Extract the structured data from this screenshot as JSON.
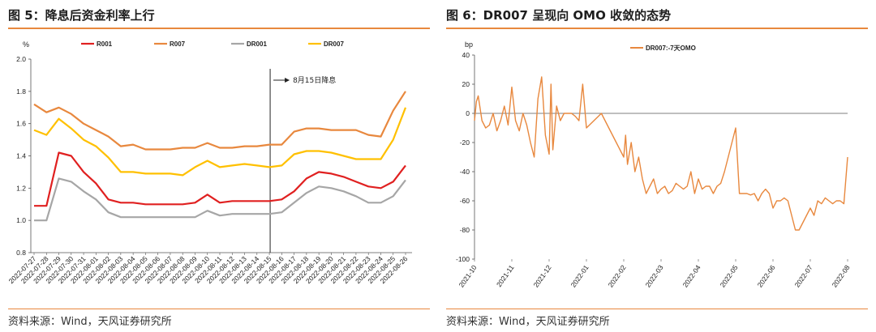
{
  "left": {
    "title": "图 5：降息后资金利率上行",
    "source": "资料来源：Wind，天风证券研究所",
    "chart_data": {
      "type": "line",
      "unit": "%",
      "ylim": [
        0.8,
        2.0
      ],
      "yticks": [
        "2.0",
        "1.8",
        "1.6",
        "1.4",
        "1.2",
        "1.0",
        "0.8"
      ],
      "grid": false,
      "legend_position": "top",
      "categories": [
        "2022-07-27",
        "2022-07-28",
        "2022-07-29",
        "2022-07-30",
        "2022-07-31",
        "2022-08-01",
        "2022-08-02",
        "2022-08-03",
        "2022-08-04",
        "2022-08-05",
        "2022-08-06",
        "2022-08-07",
        "2022-08-08",
        "2022-08-09",
        "2022-08-10",
        "2022-08-11",
        "2022-08-12",
        "2022-08-13",
        "2022-08-14",
        "2022-08-15",
        "2022-08-16",
        "2022-08-17",
        "2022-08-18",
        "2022-08-19",
        "2022-08-20",
        "2022-08-21",
        "2022-08-22",
        "2022-08-23",
        "2022-08-24",
        "2022-08-25",
        "2022-08-26"
      ],
      "series": [
        {
          "name": "R001",
          "color": "#e02020",
          "values": [
            1.09,
            1.09,
            1.42,
            1.4,
            1.3,
            1.23,
            1.13,
            1.11,
            1.11,
            1.1,
            1.1,
            1.1,
            1.1,
            1.11,
            1.16,
            1.11,
            1.12,
            1.12,
            1.12,
            1.12,
            1.13,
            1.18,
            1.26,
            1.3,
            1.29,
            1.27,
            1.24,
            1.21,
            1.2,
            1.24,
            1.34
          ]
        },
        {
          "name": "R007",
          "color": "#e8883e",
          "values": [
            1.72,
            1.67,
            1.7,
            1.66,
            1.6,
            1.56,
            1.52,
            1.46,
            1.47,
            1.44,
            1.44,
            1.44,
            1.45,
            1.45,
            1.48,
            1.45,
            1.45,
            1.46,
            1.46,
            1.47,
            1.47,
            1.55,
            1.57,
            1.57,
            1.56,
            1.56,
            1.56,
            1.53,
            1.52,
            1.68,
            1.8
          ]
        },
        {
          "name": "DR001",
          "color": "#a6a6a6",
          "values": [
            1.0,
            1.0,
            1.26,
            1.24,
            1.18,
            1.13,
            1.05,
            1.02,
            1.02,
            1.02,
            1.02,
            1.02,
            1.02,
            1.02,
            1.06,
            1.03,
            1.04,
            1.04,
            1.04,
            1.04,
            1.05,
            1.11,
            1.17,
            1.21,
            1.2,
            1.18,
            1.15,
            1.11,
            1.11,
            1.15,
            1.25
          ]
        },
        {
          "name": "DR007",
          "color": "#ffc000",
          "values": [
            1.56,
            1.53,
            1.63,
            1.57,
            1.5,
            1.46,
            1.39,
            1.3,
            1.3,
            1.29,
            1.29,
            1.29,
            1.28,
            1.33,
            1.37,
            1.33,
            1.34,
            1.35,
            1.34,
            1.33,
            1.34,
            1.41,
            1.43,
            1.43,
            1.42,
            1.4,
            1.38,
            1.38,
            1.38,
            1.5,
            1.7
          ]
        }
      ],
      "annotation": "8月15日降息"
    }
  },
  "right": {
    "title": "图 6：DR007 呈现向 OMO 收敛的态势",
    "source": "资料来源：Wind，天风证券研究所",
    "chart_data": {
      "type": "line",
      "unit": "bp",
      "ylim": [
        -100,
        40
      ],
      "yticks": [
        "40",
        "20",
        "0",
        "-20",
        "-40",
        "-60",
        "-80",
        "-100"
      ],
      "grid": false,
      "legend_position": "top",
      "xticks": [
        "2021-10",
        "2021-11",
        "2021-12",
        "2022-01",
        "2022-02",
        "2022-03",
        "2022-04",
        "2022-05",
        "2022-06",
        "2022-07",
        "2022-08"
      ],
      "x": [
        0,
        0.05,
        0.1,
        0.2,
        0.3,
        0.4,
        0.5,
        0.6,
        0.7,
        0.8,
        0.9,
        1.0,
        1.1,
        1.2,
        1.3,
        1.4,
        1.5,
        1.6,
        1.7,
        1.8,
        1.9,
        2.0,
        2.05,
        2.1,
        2.2,
        2.3,
        2.4,
        2.5,
        2.6,
        2.7,
        2.8,
        2.9,
        3.0,
        3.2,
        3.4,
        3.6,
        3.8,
        4.0,
        4.05,
        4.1,
        4.2,
        4.3,
        4.4,
        4.5,
        4.6,
        4.7,
        4.8,
        4.9,
        5.0,
        5.1,
        5.2,
        5.3,
        5.4,
        5.5,
        5.6,
        5.7,
        5.8,
        5.9,
        6.0,
        6.1,
        6.2,
        6.3,
        6.4,
        6.5,
        6.6,
        6.7,
        6.8,
        6.9,
        7.0,
        7.1,
        7.2,
        7.3,
        7.4,
        7.5,
        7.6,
        7.7,
        7.8,
        7.9,
        8.0,
        8.1,
        8.2,
        8.3,
        8.4,
        8.5,
        8.6,
        8.7,
        8.8,
        8.9,
        9.0,
        9.1,
        9.2,
        9.3,
        9.4,
        9.5,
        9.6,
        9.7,
        9.8,
        9.9,
        10.0
      ],
      "series": [
        {
          "name": "DR007:-7天OMO",
          "color": "#e8883e",
          "values": [
            -5,
            8,
            12,
            -5,
            -10,
            -8,
            0,
            -12,
            -5,
            5,
            -8,
            18,
            -5,
            -12,
            0,
            -8,
            -20,
            -30,
            10,
            25,
            -15,
            -28,
            20,
            -25,
            5,
            -5,
            0,
            0,
            0,
            -2,
            -5,
            20,
            -10,
            -5,
            0,
            -10,
            -20,
            -30,
            -15,
            -35,
            -20,
            -40,
            -30,
            -45,
            -55,
            -50,
            -45,
            -55,
            -52,
            -50,
            -55,
            -53,
            -48,
            -50,
            -52,
            -50,
            -40,
            -55,
            -45,
            -52,
            -50,
            -50,
            -55,
            -50,
            -48,
            -40,
            -30,
            -20,
            -10,
            -55,
            -55,
            -55,
            -56,
            -55,
            -60,
            -55,
            -52,
            -55,
            -65,
            -60,
            -60,
            -58,
            -60,
            -70,
            -80,
            -80,
            -75,
            -70,
            -65,
            -70,
            -60,
            -62,
            -58,
            -60,
            -62,
            -60,
            -60,
            -62,
            -30
          ]
        }
      ]
    }
  }
}
